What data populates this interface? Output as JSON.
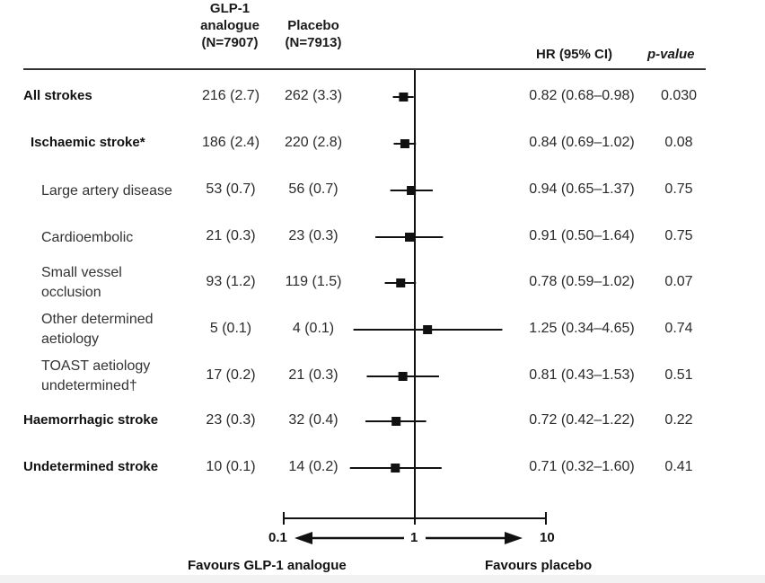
{
  "chart_data": {
    "type": "forest",
    "columns": {
      "glp1": [
        "GLP-1",
        "analogue",
        "(N=7907)"
      ],
      "placebo": [
        "Placebo",
        "(N=7913)"
      ],
      "hr": "HR (95% CI)",
      "p": "p-value"
    },
    "rows": [
      {
        "label": [
          "All strokes"
        ],
        "bold": true,
        "indent": false,
        "glp1": "216 (2.7)",
        "placebo": "262 (3.3)",
        "hr": 0.82,
        "lo": 0.68,
        "hi": 0.98,
        "hr_text": "0.82 (0.68–0.98)",
        "p": "0.030"
      },
      {
        "label": [
          "Ischaemic stroke*"
        ],
        "bold": true,
        "indent": true,
        "glp1": "186 (2.4)",
        "placebo": "220 (2.8)",
        "hr": 0.84,
        "lo": 0.69,
        "hi": 1.02,
        "hr_text": "0.84 (0.69–1.02)",
        "p": "0.08"
      },
      {
        "label": [
          "Large artery disease"
        ],
        "bold": false,
        "indent": true,
        "glp1": "53 (0.7)",
        "placebo": "56 (0.7)",
        "hr": 0.94,
        "lo": 0.65,
        "hi": 1.37,
        "hr_text": "0.94 (0.65–1.37)",
        "p": "0.75"
      },
      {
        "label": [
          "Cardioembolic"
        ],
        "bold": false,
        "indent": true,
        "glp1": "21 (0.3)",
        "placebo": "23 (0.3)",
        "hr": 0.91,
        "lo": 0.5,
        "hi": 1.64,
        "hr_text": "0.91 (0.50–1.64)",
        "p": "0.75"
      },
      {
        "label": [
          "Small vessel",
          "occlusion"
        ],
        "bold": false,
        "indent": true,
        "glp1": "93 (1.2)",
        "placebo": "119 (1.5)",
        "hr": 0.78,
        "lo": 0.59,
        "hi": 1.02,
        "hr_text": "0.78 (0.59–1.02)",
        "p": "0.07"
      },
      {
        "label": [
          "Other determined",
          "aetiology"
        ],
        "bold": false,
        "indent": true,
        "glp1": "5 (0.1)",
        "placebo": "4 (0.1)",
        "hr": 1.25,
        "lo": 0.34,
        "hi": 4.65,
        "hr_text": "1.25 (0.34–4.65)",
        "p": "0.74"
      },
      {
        "label": [
          "TOAST aetiology",
          "undetermined†"
        ],
        "bold": false,
        "indent": true,
        "glp1": "17 (0.2)",
        "placebo": "21 (0.3)",
        "hr": 0.81,
        "lo": 0.43,
        "hi": 1.53,
        "hr_text": "0.81 (0.43–1.53)",
        "p": "0.51"
      },
      {
        "label": [
          "Haemorrhagic stroke"
        ],
        "bold": true,
        "indent": false,
        "glp1": "23 (0.3)",
        "placebo": "32 (0.4)",
        "hr": 0.72,
        "lo": 0.42,
        "hi": 1.22,
        "hr_text": "0.72 (0.42–1.22)",
        "p": "0.22"
      },
      {
        "label": [
          "Undetermined stroke"
        ],
        "bold": true,
        "indent": false,
        "glp1": "10 (0.1)",
        "placebo": "14 (0.2)",
        "hr": 0.71,
        "lo": 0.32,
        "hi": 1.6,
        "hr_text": "0.71 (0.32–1.60)",
        "p": "0.41"
      }
    ],
    "x_axis": {
      "scale": "log",
      "ticks": [
        "0.1",
        "1",
        "10"
      ],
      "xlim": [
        0.1,
        10
      ],
      "reference_line": 1,
      "left_label": "Favours GLP-1 analogue",
      "right_label": "Favours placebo"
    }
  }
}
